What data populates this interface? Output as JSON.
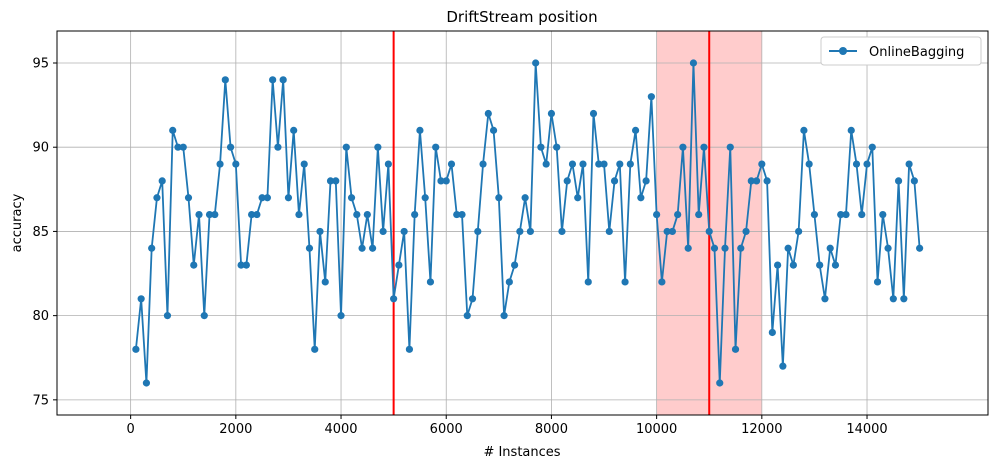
{
  "chart_data": {
    "type": "line",
    "title": "DriftStream position",
    "xlabel": "# Instances",
    "ylabel": "accuracy",
    "xlim": [
      -1400,
      16300
    ],
    "ylim": [
      74.1,
      96.9
    ],
    "xticks": [
      0,
      2000,
      4000,
      6000,
      8000,
      10000,
      12000,
      14000
    ],
    "xtick_labels": [
      "0",
      "2000",
      "4000",
      "6000",
      "8000",
      "10000",
      "12000",
      "14000"
    ],
    "yticks": [
      75,
      80,
      85,
      90,
      95
    ],
    "ytick_labels": [
      "75",
      "80",
      "85",
      "90",
      "95"
    ],
    "grid": true,
    "legend_position": "top-right",
    "series": [
      {
        "name": "OnlineBagging",
        "color": "#1f77b4",
        "marker": "circle",
        "x": [
          100,
          200,
          300,
          400,
          500,
          600,
          700,
          800,
          900,
          1000,
          1100,
          1200,
          1300,
          1400,
          1500,
          1600,
          1700,
          1800,
          1900,
          2000,
          2100,
          2200,
          2300,
          2400,
          2500,
          2600,
          2700,
          2800,
          2900,
          3000,
          3100,
          3200,
          3300,
          3400,
          3500,
          3600,
          3700,
          3800,
          3900,
          4000,
          4100,
          4200,
          4300,
          4400,
          4500,
          4600,
          4700,
          4800,
          4900,
          5000,
          5100,
          5200,
          5300,
          5400,
          5500,
          5600,
          5700,
          5800,
          5900,
          6000,
          6100,
          6200,
          6300,
          6400,
          6500,
          6600,
          6700,
          6800,
          6900,
          7000,
          7100,
          7200,
          7300,
          7400,
          7500,
          7600,
          7700,
          7800,
          7900,
          8000,
          8100,
          8200,
          8300,
          8400,
          8500,
          8600,
          8700,
          8800,
          8900,
          9000,
          9100,
          9200,
          9300,
          9400,
          9500,
          9600,
          9700,
          9800,
          9900,
          10000,
          10100,
          10200,
          10300,
          10400,
          10500,
          10600,
          10700,
          10800,
          10900,
          11000,
          11100,
          11200,
          11300,
          11400,
          11500,
          11600,
          11700,
          11800,
          11900,
          12000,
          12100,
          12200,
          12300,
          12400,
          12500,
          12600,
          12700,
          12800,
          12900,
          13000,
          13100,
          13200,
          13300,
          13400,
          13500,
          13600,
          13700,
          13800,
          13900,
          14000,
          14100,
          14200,
          14300,
          14400,
          14500,
          14600,
          14700,
          14800,
          14900,
          15000
        ],
        "y": [
          78,
          81,
          76,
          84,
          87,
          88,
          80,
          91,
          90,
          90,
          87,
          83,
          86,
          80,
          86,
          86,
          89,
          94,
          90,
          89,
          83,
          83,
          86,
          86,
          87,
          87,
          94,
          90,
          94,
          87,
          91,
          86,
          89,
          84,
          78,
          85,
          82,
          88,
          88,
          80,
          90,
          87,
          86,
          84,
          86,
          84,
          90,
          85,
          89,
          81,
          83,
          85,
          78,
          86,
          91,
          87,
          82,
          90,
          88,
          88,
          89,
          86,
          86,
          80,
          81,
          85,
          89,
          92,
          91,
          87,
          80,
          82,
          83,
          85,
          87,
          85,
          95,
          90,
          89,
          92,
          90,
          85,
          88,
          89,
          87,
          89,
          82,
          92,
          89,
          89,
          85,
          88,
          89,
          82,
          89,
          91,
          87,
          88,
          93,
          86,
          82,
          85,
          85,
          86,
          90,
          84,
          95,
          86,
          90,
          85,
          84,
          76,
          84,
          90,
          78,
          84,
          85,
          88,
          88,
          89,
          88,
          79,
          83,
          77,
          84,
          83,
          85,
          91,
          89,
          86,
          83,
          81,
          84,
          83,
          86,
          86,
          91,
          89,
          86,
          89,
          90,
          82,
          86,
          84,
          81,
          88,
          81,
          89,
          88,
          84
        ]
      }
    ],
    "vlines": [
      {
        "x": 5000,
        "color": "#ff0000"
      },
      {
        "x": 11000,
        "color": "#ff0000"
      }
    ],
    "shaded_regions": [
      {
        "x0": 10000,
        "x1": 12000,
        "color": "#ff0000",
        "alpha": 0.2
      }
    ]
  }
}
